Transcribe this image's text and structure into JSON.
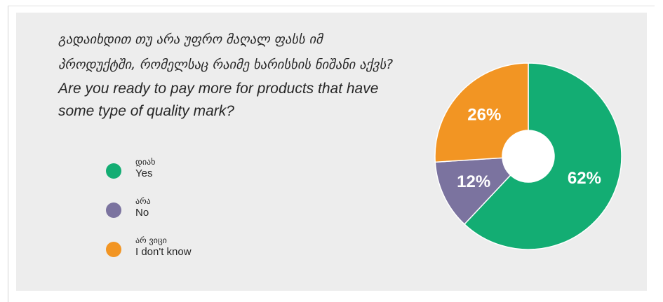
{
  "question": {
    "title_ka": "გადაიხდით თუ არა უფრო მაღალ ფასს იმ პროდუქტში, რომელსაც რაიმე ხარისხის ნიშანი აქვს?",
    "title_ka_line1": "გადაიხდით თუ არა უფრო მაღალ ფასს იმ",
    "title_ka_line2": "პროდუქტში, რომელსაც რაიმე ხარისხის ნიშანი აქვს?",
    "title_en": "Are you ready to pay more for products that have some type of quality mark?"
  },
  "legend": [
    {
      "label_ka": "დიახ",
      "label_en": "Yes",
      "color": "#13ad73"
    },
    {
      "label_ka": "არა",
      "label_en": "No",
      "color": "#7b739f"
    },
    {
      "label_ka": "არ ვიცი",
      "label_en": "I don't know",
      "color": "#f29523"
    }
  ],
  "chart_data": {
    "type": "pie",
    "donut": true,
    "categories": [
      "Yes",
      "No",
      "I don't know"
    ],
    "categories_ka": [
      "დიახ",
      "არა",
      "არ ვიცი"
    ],
    "values": [
      62,
      12,
      26
    ],
    "value_labels": [
      "62%",
      "12%",
      "26%"
    ],
    "colors": [
      "#13ad73",
      "#7b739f",
      "#f29523"
    ],
    "legend_position": "left"
  }
}
